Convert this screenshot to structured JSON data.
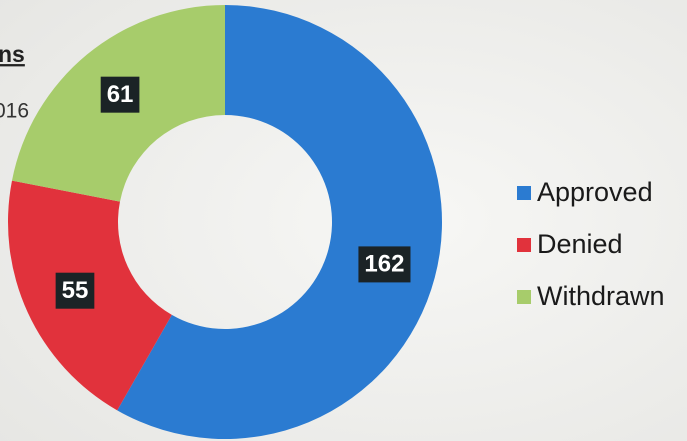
{
  "chart_data": {
    "type": "donut",
    "title": "ns",
    "subtitle": "016",
    "categories": [
      "Approved",
      "Denied",
      "Withdrawn"
    ],
    "values": [
      162,
      55,
      61
    ],
    "colors": [
      "#2b7bd1",
      "#e1323c",
      "#a7cc6b"
    ],
    "legend": "right"
  }
}
